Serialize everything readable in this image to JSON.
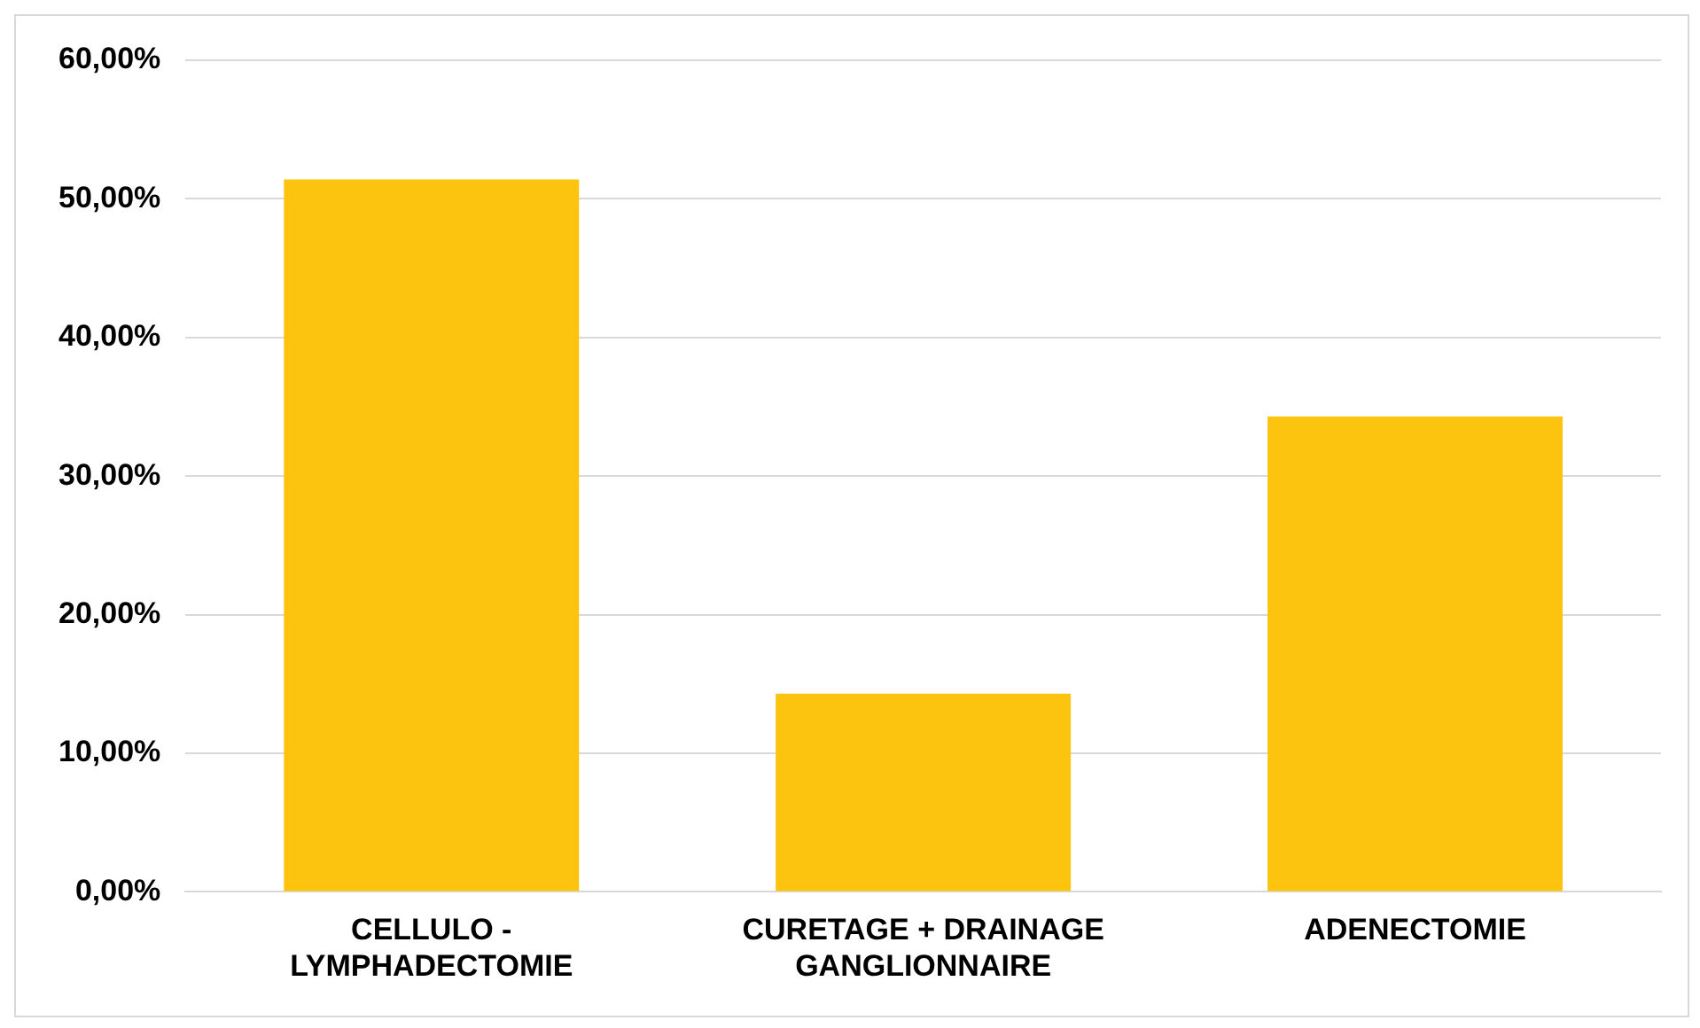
{
  "chart_data": {
    "type": "bar",
    "categories": [
      "CELLULO - LYMPHADECTOMIE",
      "CURETAGE + DRAINAGE GANGLIONNAIRE",
      "ADENECTOMIE"
    ],
    "values": [
      51.4,
      14.3,
      34.3
    ],
    "color": "#fcc30f",
    "ylim": [
      0,
      60
    ],
    "yticks": [
      {
        "value": 0,
        "label": "0,00%"
      },
      {
        "value": 10,
        "label": "10,00%"
      },
      {
        "value": 20,
        "label": "20,00%"
      },
      {
        "value": 30,
        "label": "30,00%"
      },
      {
        "value": 40,
        "label": "40,00%"
      },
      {
        "value": 50,
        "label": "50,00%"
      },
      {
        "value": 60,
        "label": "60,00%"
      }
    ],
    "grid": "y"
  }
}
